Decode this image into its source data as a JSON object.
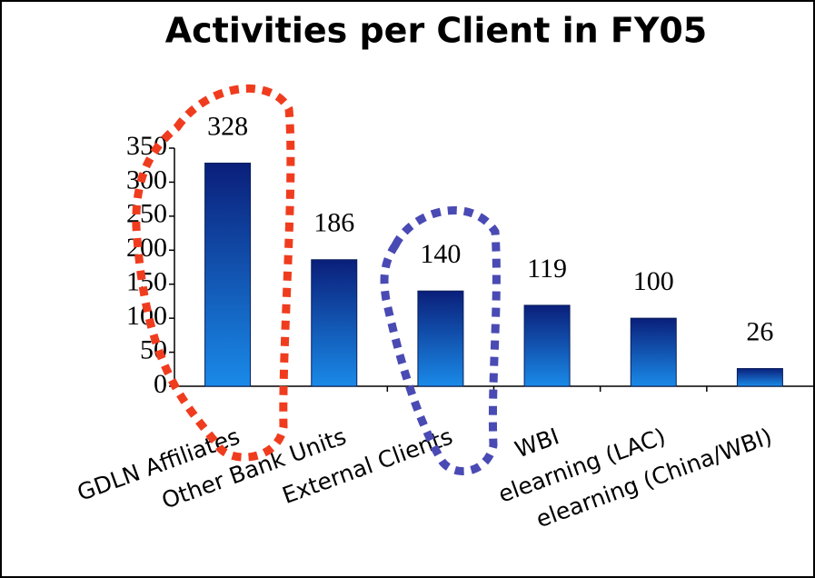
{
  "chart_data": {
    "type": "bar",
    "title": "Activities per Client in FY05",
    "categories": [
      "GDLN Affiliates",
      "Other Bank Units",
      "External Clients",
      "WBI",
      "elearning (LAC)",
      "elearning (China/WBI)"
    ],
    "values": [
      328,
      186,
      140,
      119,
      100,
      26
    ],
    "color": "#0a4aa8",
    "ylim": [
      0,
      350
    ],
    "yticks": [
      0,
      50,
      100,
      150,
      200,
      250,
      300,
      350
    ],
    "grid": false
  }
}
